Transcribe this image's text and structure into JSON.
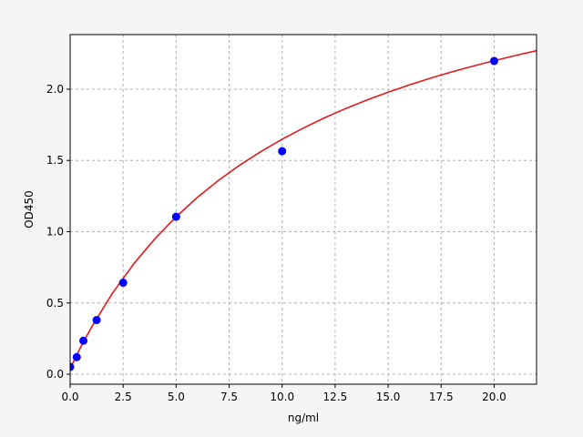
{
  "chart_data": {
    "type": "scatter",
    "title": "",
    "xlabel": "ng/ml",
    "ylabel": "OD450",
    "xlim": [
      0,
      22
    ],
    "ylim": [
      -0.07,
      2.383
    ],
    "xticks": [
      "0.0",
      "2.5",
      "5.0",
      "7.5",
      "10.0",
      "12.5",
      "15.0",
      "17.5",
      "20.0"
    ],
    "xtick_values": [
      0,
      2.5,
      5,
      7.5,
      10,
      12.5,
      15,
      17.5,
      20
    ],
    "yticks": [
      "0.0",
      "0.5",
      "1.0",
      "1.5",
      "2.0"
    ],
    "ytick_values": [
      0,
      0.5,
      1,
      1.5,
      2
    ],
    "grid": true,
    "series": [
      {
        "kind": "points",
        "color": "#0000ff",
        "x": [
          0,
          0.3125,
          0.625,
          1.25,
          2.5,
          5,
          10,
          20
        ],
        "y": [
          0.051,
          0.12,
          0.235,
          0.38,
          0.642,
          1.105,
          1.565,
          2.198
        ]
      },
      {
        "kind": "fit",
        "color": "#e31a1c",
        "x": [
          0,
          0.5,
          1,
          2,
          3,
          4,
          5,
          6,
          7,
          8,
          9,
          10,
          11,
          12,
          13,
          14,
          15,
          16,
          17,
          18,
          19,
          20,
          21,
          22
        ],
        "y": [
          0.04,
          0.19,
          0.328,
          0.569,
          0.774,
          0.951,
          1.105,
          1.24,
          1.36,
          1.467,
          1.563,
          1.649,
          1.727,
          1.799,
          1.864,
          1.924,
          1.979,
          2.03,
          2.077,
          2.121,
          2.162,
          2.2,
          2.236,
          2.27
        ]
      }
    ]
  }
}
